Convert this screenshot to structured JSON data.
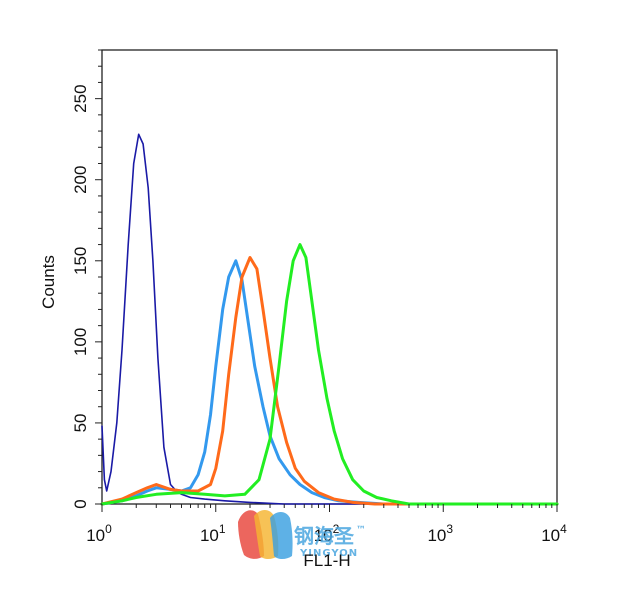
{
  "chart_data": {
    "type": "line",
    "title": "",
    "xlabel": "FL1-H",
    "ylabel": "Counts",
    "xscale": "log",
    "xlim": [
      1,
      10000
    ],
    "ylim": [
      0,
      280
    ],
    "x_ticks": [
      {
        "value": 1,
        "base": "10",
        "exp": "0"
      },
      {
        "value": 10,
        "base": "10",
        "exp": "1"
      },
      {
        "value": 100,
        "base": "10",
        "exp": "2"
      },
      {
        "value": 1000,
        "base": "10",
        "exp": "3"
      },
      {
        "value": 10000,
        "base": "10",
        "exp": "4"
      }
    ],
    "y_ticks": [
      0,
      50,
      100,
      150,
      200,
      250
    ],
    "y_tick_labels": [
      "0",
      "50",
      "100",
      "150",
      "200",
      "250"
    ],
    "grid": false,
    "legend": "none",
    "series": [
      {
        "color": "#1a1aa6",
        "x": [
          1,
          1.05,
          1.1,
          1.2,
          1.35,
          1.5,
          1.7,
          1.9,
          2.1,
          2.3,
          2.55,
          2.8,
          3.1,
          3.5,
          4,
          4.5,
          5,
          6,
          8,
          12,
          20,
          40,
          100,
          300,
          10000
        ],
        "y": [
          48,
          15,
          8,
          20,
          50,
          95,
          160,
          210,
          228,
          222,
          195,
          150,
          90,
          35,
          12,
          8,
          6,
          4,
          3,
          2,
          1,
          0,
          0,
          0,
          0
        ]
      },
      {
        "color": "#3399ee",
        "x": [
          1,
          1.5,
          2,
          2.5,
          3,
          4,
          5,
          6,
          7,
          8,
          9,
          10,
          11.5,
          13,
          15,
          17,
          19,
          22,
          26,
          30,
          36,
          45,
          55,
          70,
          90,
          120,
          180,
          300,
          10000
        ],
        "y": [
          0,
          2,
          5,
          8,
          10,
          9,
          8,
          10,
          18,
          32,
          55,
          85,
          120,
          140,
          150,
          138,
          115,
          85,
          60,
          42,
          28,
          18,
          12,
          7,
          4,
          2,
          1,
          0,
          0
        ]
      },
      {
        "color": "#ff6a1a",
        "x": [
          1,
          1.5,
          2,
          2.5,
          3,
          4,
          5,
          7,
          9,
          10,
          11.5,
          13,
          15,
          17,
          20,
          23,
          26,
          30,
          35,
          42,
          50,
          60,
          80,
          110,
          160,
          250,
          10000
        ],
        "y": [
          0,
          3,
          7,
          10,
          12,
          9,
          8,
          8,
          12,
          22,
          45,
          80,
          115,
          140,
          152,
          145,
          120,
          90,
          60,
          38,
          22,
          14,
          7,
          3,
          1,
          0,
          0
        ]
      },
      {
        "color": "#22ee22",
        "x": [
          1,
          1.5,
          2,
          3,
          5,
          8,
          12,
          18,
          24,
          30,
          36,
          42,
          48,
          55,
          62,
          70,
          80,
          95,
          110,
          130,
          160,
          200,
          260,
          350,
          500,
          10000
        ],
        "y": [
          0,
          2,
          4,
          6,
          7,
          6,
          5,
          6,
          15,
          40,
          85,
          125,
          150,
          160,
          152,
          125,
          95,
          65,
          45,
          28,
          15,
          8,
          4,
          2,
          0,
          0
        ]
      }
    ]
  },
  "watermark": {
    "cn_text": "钢海圣",
    "tm": "™",
    "en_text": "YINGYON"
  }
}
